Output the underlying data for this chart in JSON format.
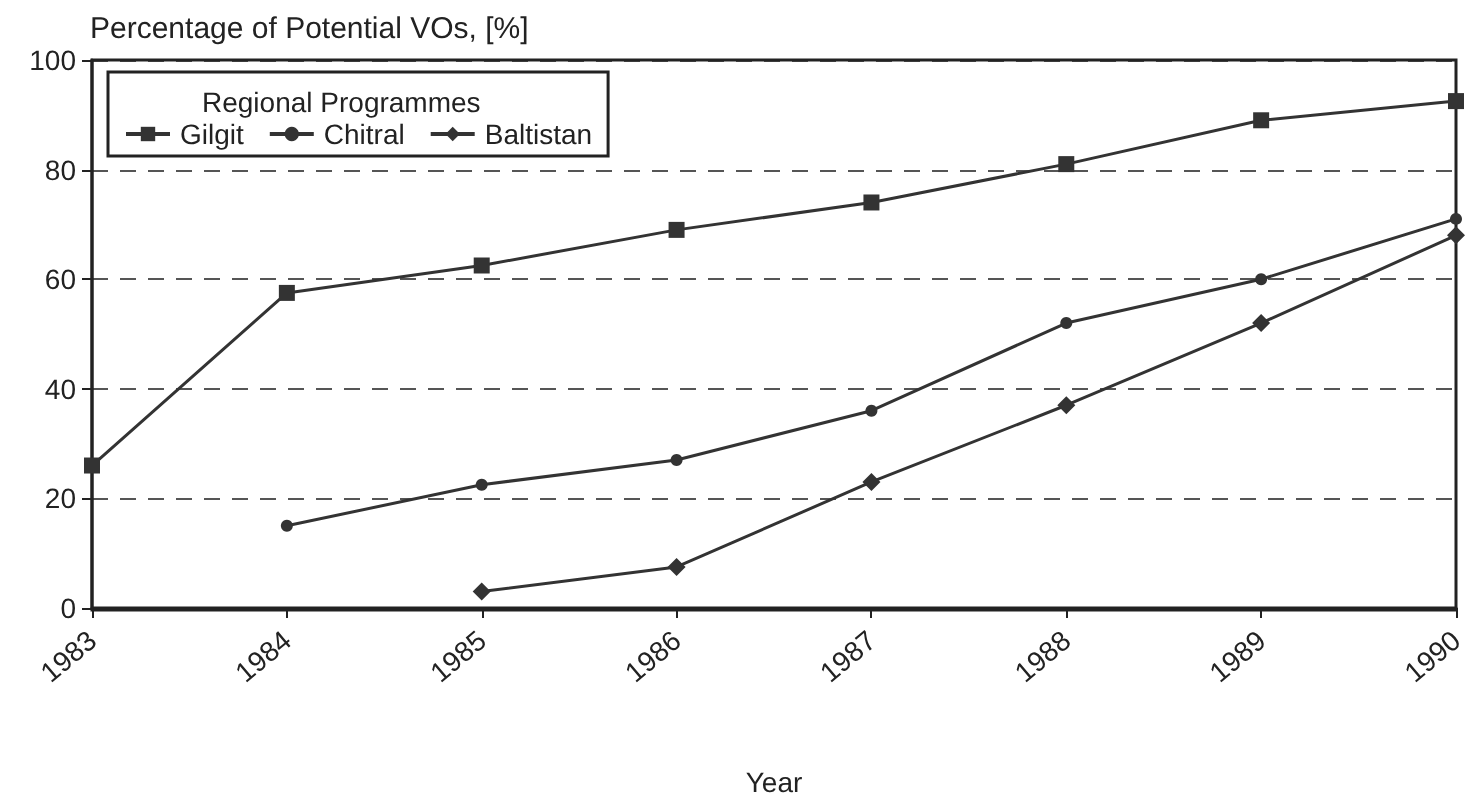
{
  "chart_data": {
    "type": "line",
    "ylabel": "Percentage of Potential VOs, [%]",
    "xlabel": "Year",
    "legend_title": "Regional Programmes",
    "categories": [
      "1983",
      "1984",
      "1985",
      "1986",
      "1987",
      "1988",
      "1989",
      "1990"
    ],
    "series": [
      {
        "name": "Gilgit",
        "color": "#333333",
        "marker": "square",
        "values": [
          26,
          57.5,
          62.5,
          69,
          74,
          81,
          89,
          92.5
        ]
      },
      {
        "name": "Chitral",
        "color": "#333333",
        "marker": "circle",
        "values": [
          null,
          15,
          22.5,
          27,
          36,
          52,
          60,
          71
        ]
      },
      {
        "name": "Baltistan",
        "color": "#333333",
        "marker": "diamond",
        "values": [
          null,
          null,
          3,
          7.5,
          23,
          37,
          52,
          68
        ]
      }
    ],
    "ylim": [
      0,
      100
    ],
    "yticks": [
      0,
      20,
      40,
      60,
      80,
      100
    ],
    "grid": "y",
    "legend": "top left",
    "line_style": "solid"
  }
}
